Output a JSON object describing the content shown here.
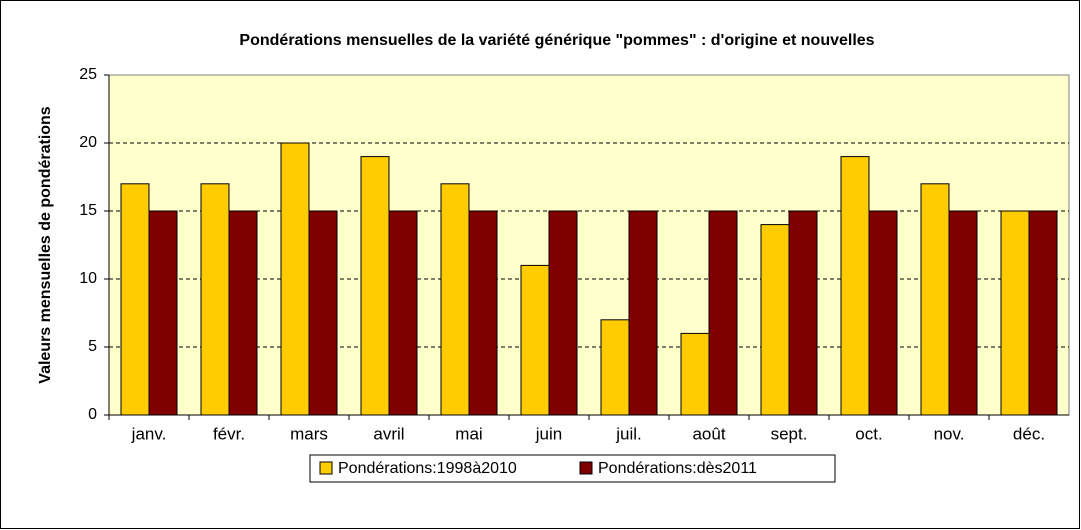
{
  "chart_data": {
    "type": "bar",
    "title": "Pondérations mensuelles de la variété générique \"pommes\" : d'origine et nouvelles",
    "y_label": "Valeurs mensuelles de pondérations",
    "categories": [
      "janv.",
      "févr.",
      "mars",
      "avril",
      "mai",
      "juin",
      "juil.",
      "août",
      "sept.",
      "oct.",
      "nov.",
      "déc."
    ],
    "series": [
      {
        "name": "Pondérations:1998à2010",
        "color": "#FFCC00",
        "values": [
          17,
          17,
          20,
          19,
          17,
          11,
          7,
          6,
          14,
          19,
          17,
          15
        ]
      },
      {
        "name": "Pondérations:dès2011",
        "color": "#800000",
        "values": [
          15,
          15,
          15,
          15,
          15,
          15,
          15,
          15,
          15,
          15,
          15,
          15
        ]
      }
    ],
    "ylim": [
      0,
      25
    ],
    "yticks": [
      0,
      5,
      10,
      15,
      20,
      25
    ],
    "grid": true,
    "legend": "bottom"
  }
}
